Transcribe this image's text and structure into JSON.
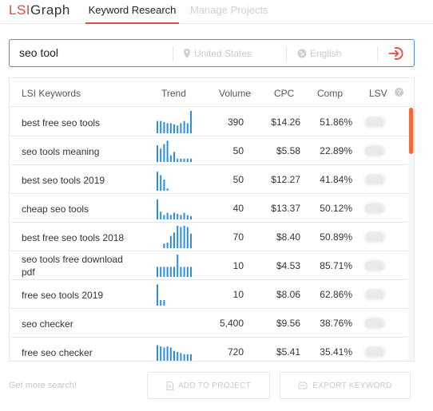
{
  "app": {
    "logo_part1": "LSI",
    "logo_part2": "Graph",
    "nav": {
      "active_tab": "Keyword Research",
      "inactive_tab": "Manage Projects"
    },
    "accent_color": "#e8453c",
    "bar_color": "#2c8fd6"
  },
  "search": {
    "query": "seo tool",
    "location": "United States",
    "language": "English"
  },
  "table": {
    "headers": {
      "keyword": "LSI Keywords",
      "trend": "Trend",
      "volume": "Volume",
      "cpc": "CPC",
      "comp": "Comp",
      "lsv": "LSV"
    },
    "rows": [
      {
        "keyword": "best free seo tools",
        "volume": "390",
        "cpc": "$14.26",
        "comp": "51.86%",
        "trend": [
          0.55,
          0.55,
          0.5,
          0.45,
          0.45,
          0.4,
          0.35,
          0.45,
          0.55,
          0.45,
          1.0
        ]
      },
      {
        "keyword": "seo tools meaning",
        "volume": "50",
        "cpc": "$5.58",
        "comp": "22.89%",
        "trend": [
          0.75,
          0.6,
          0.8,
          0.95,
          0.3,
          0.45,
          0.15,
          0.15,
          0.15,
          0.15,
          0.15
        ]
      },
      {
        "keyword": "best seo tools 2019",
        "volume": "50",
        "cpc": "$12.27",
        "comp": "41.84%",
        "trend": [
          0.85,
          0.7,
          0.5,
          0.1,
          0,
          0,
          0,
          0,
          0,
          0,
          0
        ]
      },
      {
        "keyword": "cheap seo tools",
        "volume": "40",
        "cpc": "$13.37",
        "comp": "50.12%",
        "trend": [
          0.9,
          0.35,
          0.2,
          0.3,
          0.2,
          0.3,
          0.25,
          0.2,
          0.3,
          0.2,
          0.15
        ]
      },
      {
        "keyword": "best free seo tools 2018",
        "volume": "70",
        "cpc": "$8.40",
        "comp": "50.89%",
        "trend": [
          0,
          0,
          0.2,
          0.25,
          0.55,
          0.7,
          1.0,
          0.95,
          1.0,
          0.95,
          0.65
        ]
      },
      {
        "keyword": "seo tools free download pdf",
        "volume": "10",
        "cpc": "$4.53",
        "comp": "85.71%",
        "trend": [
          0.45,
          0.45,
          0.45,
          0.45,
          0.45,
          0.45,
          1.0,
          0.45,
          0.45,
          0.45,
          0.45
        ]
      },
      {
        "keyword": "free seo tools 2019",
        "volume": "10",
        "cpc": "$8.06",
        "comp": "62.86%",
        "trend": [
          0.95,
          0.25,
          0.25,
          0,
          0,
          0,
          0,
          0,
          0,
          0,
          0
        ]
      },
      {
        "keyword": "seo checker",
        "volume": "5,400",
        "cpc": "$9.56",
        "comp": "38.76%",
        "trend": []
      },
      {
        "keyword": "free seo checker",
        "volume": "720",
        "cpc": "$5.41",
        "comp": "35.41%",
        "trend": [
          0.8,
          0.75,
          0.7,
          0.75,
          0.7,
          0.55,
          0.5,
          0.45,
          0.4,
          0.4,
          0.4
        ]
      }
    ]
  },
  "footer": {
    "more_search": "Get more search!",
    "add_to_project": "ADD TO PROJECT",
    "export_keyword": "EXPORT KEYWORD"
  }
}
